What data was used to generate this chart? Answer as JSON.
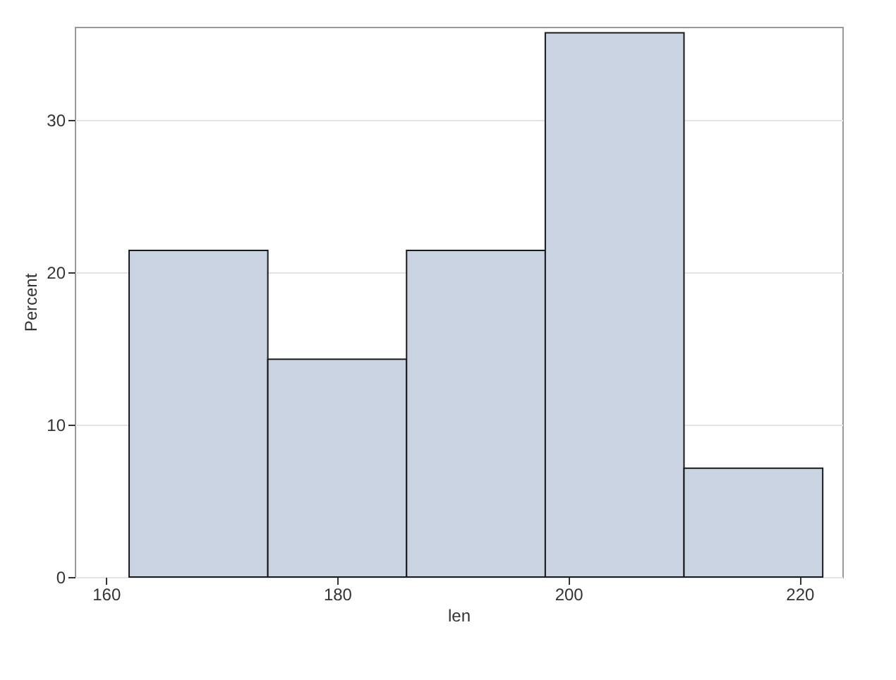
{
  "chart_data": {
    "type": "histogram",
    "xlabel": "len",
    "ylabel": "Percent",
    "bins": [
      162,
      174,
      186,
      198,
      210,
      222
    ],
    "values": [
      21.43,
      14.29,
      21.43,
      35.71,
      7.14
    ],
    "color": "#cad3e2",
    "xlim": [
      157.3,
      223.7
    ],
    "xticks": [
      160,
      180,
      200,
      220
    ],
    "ylim": [
      0,
      36.1
    ],
    "yticks": [
      0,
      10,
      20,
      30
    ],
    "grid": "y"
  }
}
